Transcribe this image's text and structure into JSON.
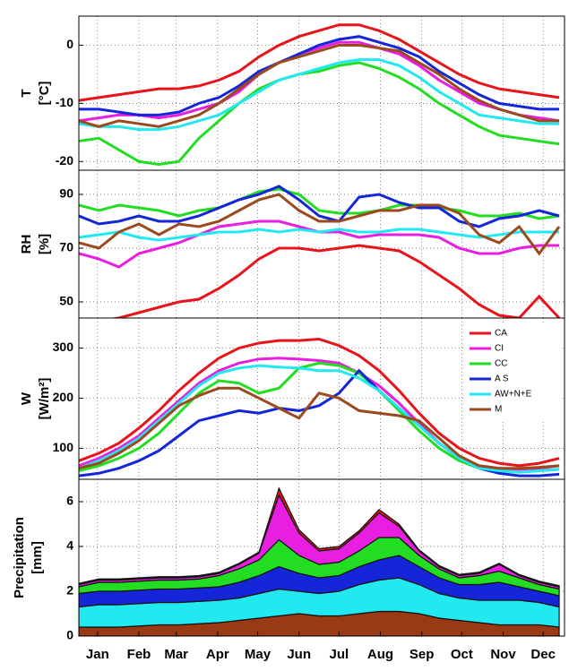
{
  "chart_data": [
    {
      "type": "line",
      "ylabel": "T",
      "yunit": "[°C]",
      "ylim": [
        -21.5,
        5
      ],
      "yticks": [
        -20,
        -10,
        0
      ],
      "xlim": [
        1,
        365
      ],
      "x": [
        1,
        16,
        31,
        46,
        61,
        76,
        91,
        106,
        121,
        136,
        151,
        166,
        181,
        196,
        211,
        226,
        241,
        256,
        271,
        286,
        301,
        316,
        331,
        346,
        361
      ],
      "series": [
        {
          "color": "#e8141c",
          "values": [
            -9.5,
            -9,
            -8.5,
            -8,
            -7.5,
            -7.5,
            -7,
            -6,
            -4.5,
            -2,
            0,
            1.5,
            2.5,
            3.5,
            3.5,
            2.5,
            1,
            -1,
            -3,
            -5,
            -6.5,
            -7.5,
            -8,
            -8.5,
            -9
          ]
        },
        {
          "color": "#e81ee0",
          "values": [
            -13,
            -12.5,
            -12,
            -12,
            -12.5,
            -12,
            -11,
            -10,
            -8,
            -5,
            -3,
            -1.5,
            -0.5,
            0.5,
            0.5,
            -0.5,
            -1.5,
            -3.5,
            -6,
            -8,
            -10,
            -11,
            -12,
            -12.5,
            -13
          ]
        },
        {
          "color": "#22dd22",
          "values": [
            -16.5,
            -16,
            -18,
            -20,
            -20.5,
            -20,
            -16,
            -13,
            -10,
            -7.5,
            -6,
            -5,
            -4.5,
            -3.5,
            -3,
            -4,
            -5.5,
            -7.5,
            -10,
            -12,
            -14,
            -15.5,
            -16,
            -16.5,
            -17
          ]
        },
        {
          "color": "#1426d8",
          "values": [
            -11,
            -11,
            -11.5,
            -12,
            -12,
            -11.5,
            -10,
            -9,
            -7,
            -4.5,
            -3,
            -1.5,
            0,
            1,
            1.5,
            0.5,
            -0.5,
            -2,
            -4.5,
            -6.5,
            -8.5,
            -10,
            -10.5,
            -11,
            -11
          ]
        },
        {
          "color": "#22e8f0",
          "values": [
            -13.5,
            -14,
            -14,
            -14.5,
            -14.5,
            -14,
            -13,
            -12,
            -10,
            -8,
            -6,
            -5,
            -4,
            -3,
            -2.5,
            -2.5,
            -3.5,
            -5.5,
            -8,
            -10,
            -12,
            -12.5,
            -13,
            -13.5,
            -13.5
          ]
        },
        {
          "color": "#9a4a1c",
          "values": [
            -13,
            -14,
            -13,
            -13.5,
            -14,
            -13,
            -12,
            -10,
            -7.5,
            -5,
            -3,
            -2,
            -1,
            0,
            0,
            -0.5,
            -1,
            -3,
            -5,
            -7.5,
            -9.5,
            -11,
            -12,
            -13,
            -13
          ]
        }
      ]
    },
    {
      "type": "line",
      "ylabel": "RH",
      "yunit": "[%]",
      "ylim": [
        44,
        99
      ],
      "yticks": [
        50,
        70,
        90
      ],
      "xlim": [
        1,
        365
      ],
      "x": [
        1,
        16,
        31,
        46,
        61,
        76,
        91,
        106,
        121,
        136,
        151,
        166,
        181,
        196,
        211,
        226,
        241,
        256,
        271,
        286,
        301,
        316,
        331,
        346,
        361
      ],
      "series": [
        {
          "color": "#e8141c",
          "values": [
            42,
            43,
            44,
            46,
            48,
            50,
            51,
            55,
            60,
            66,
            70,
            70,
            69,
            70,
            71,
            70,
            69,
            65,
            60,
            55,
            49,
            45,
            44,
            52,
            44
          ]
        },
        {
          "color": "#e81ee0",
          "values": [
            68,
            66,
            63,
            68,
            70,
            72,
            75,
            78,
            79,
            80,
            80,
            78,
            76,
            76,
            74,
            75,
            75,
            75,
            74,
            70,
            68,
            68,
            70,
            71,
            71
          ]
        },
        {
          "color": "#22dd22",
          "values": [
            86,
            84,
            86,
            85,
            84,
            82,
            84,
            85,
            88,
            91,
            92,
            90,
            84,
            83,
            83,
            84,
            86,
            86,
            85,
            84,
            82,
            82,
            83,
            81,
            82
          ]
        },
        {
          "color": "#1426d8",
          "values": [
            82,
            79,
            80,
            82,
            80,
            80,
            82,
            85,
            88,
            90,
            93,
            88,
            82,
            80,
            89,
            90,
            87,
            85,
            85,
            80,
            78,
            81,
            82,
            84,
            82
          ]
        },
        {
          "color": "#22e8f0",
          "values": [
            74,
            75,
            76,
            74,
            73,
            74,
            75,
            76,
            76,
            77,
            76,
            77,
            76,
            77,
            76,
            76,
            77,
            77,
            76,
            75,
            74,
            75,
            76,
            76,
            76
          ]
        },
        {
          "color": "#9a4a1c",
          "values": [
            72,
            70,
            76,
            79,
            75,
            79,
            78,
            80,
            84,
            88,
            90,
            84,
            80,
            80,
            82,
            84,
            84,
            86,
            86,
            83,
            75,
            72,
            78,
            68,
            78
          ]
        }
      ]
    },
    {
      "type": "line",
      "ylabel": "W",
      "yunit": "[W/m²]",
      "ylim": [
        38,
        360
      ],
      "yticks": [
        100,
        200,
        300
      ],
      "xlim": [
        1,
        365
      ],
      "x": [
        1,
        16,
        31,
        46,
        61,
        76,
        91,
        106,
        121,
        136,
        151,
        166,
        181,
        196,
        211,
        226,
        241,
        256,
        271,
        286,
        301,
        316,
        331,
        346,
        361
      ],
      "series": [
        {
          "name": "CA",
          "color": "#e8141c",
          "values": [
            75,
            90,
            110,
            140,
            175,
            215,
            250,
            280,
            300,
            310,
            315,
            315,
            318,
            305,
            285,
            255,
            215,
            170,
            130,
            100,
            80,
            70,
            65,
            70,
            80
          ]
        },
        {
          "name": "CI",
          "color": "#e81ee0",
          "values": [
            65,
            80,
            100,
            125,
            160,
            195,
            230,
            255,
            270,
            278,
            280,
            278,
            275,
            270,
            250,
            225,
            190,
            150,
            110,
            80,
            65,
            60,
            58,
            60,
            65
          ]
        },
        {
          "name": "CC",
          "color": "#22dd22",
          "values": [
            55,
            65,
            80,
            100,
            130,
            170,
            210,
            235,
            230,
            210,
            220,
            260,
            270,
            265,
            250,
            215,
            175,
            135,
            100,
            75,
            60,
            55,
            52,
            55,
            58
          ]
        },
        {
          "name": "A S",
          "color": "#1426d8",
          "values": [
            45,
            50,
            60,
            75,
            95,
            125,
            155,
            165,
            175,
            170,
            180,
            175,
            185,
            210,
            255,
            215,
            180,
            145,
            110,
            80,
            60,
            50,
            45,
            45,
            48
          ]
        },
        {
          "name": "AW+N+E",
          "color": "#22e8f0",
          "values": [
            60,
            75,
            95,
            120,
            155,
            190,
            225,
            250,
            260,
            265,
            262,
            260,
            255,
            255,
            240,
            215,
            180,
            145,
            110,
            80,
            60,
            55,
            52,
            55,
            58
          ]
        },
        {
          "name": "M",
          "color": "#9a4a1c",
          "values": [
            60,
            70,
            90,
            115,
            150,
            185,
            205,
            220,
            220,
            200,
            180,
            160,
            210,
            200,
            175,
            170,
            165,
            155,
            120,
            85,
            65,
            60,
            60,
            62,
            65
          ]
        }
      ]
    },
    {
      "type": "area",
      "ylabel": "Precipitation",
      "yunit": "[mm]",
      "ylim": [
        0,
        7
      ],
      "yticks": [
        0,
        2,
        4,
        6
      ],
      "xlim": [
        1,
        365
      ],
      "xticks": [
        {
          "value": 15,
          "label": "Jan"
        },
        {
          "value": 46,
          "label": "Feb"
        },
        {
          "value": 74,
          "label": "Mar"
        },
        {
          "value": 105,
          "label": "Apr"
        },
        {
          "value": 135,
          "label": "May"
        },
        {
          "value": 166,
          "label": "Jun"
        },
        {
          "value": 196,
          "label": "Jul"
        },
        {
          "value": 227,
          "label": "Aug"
        },
        {
          "value": 258,
          "label": "Sep"
        },
        {
          "value": 288,
          "label": "Oct"
        },
        {
          "value": 319,
          "label": "Nov"
        },
        {
          "value": 349,
          "label": "Dec"
        }
      ],
      "x": [
        1,
        16,
        31,
        46,
        61,
        76,
        91,
        106,
        121,
        136,
        151,
        166,
        181,
        196,
        211,
        226,
        241,
        256,
        271,
        286,
        301,
        316,
        331,
        346,
        361
      ],
      "series": [
        {
          "color": "#9a3a14",
          "values": [
            0.4,
            0.4,
            0.4,
            0.45,
            0.5,
            0.5,
            0.55,
            0.6,
            0.7,
            0.8,
            0.9,
            1.0,
            0.9,
            0.9,
            1.0,
            1.1,
            1.1,
            1.0,
            0.8,
            0.7,
            0.6,
            0.5,
            0.5,
            0.5,
            0.4
          ]
        },
        {
          "color": "#22e8f0",
          "values": [
            0.9,
            1.0,
            1.0,
            1.0,
            1.0,
            1.0,
            1.0,
            1.0,
            1.0,
            1.1,
            1.2,
            1.0,
            1.0,
            1.1,
            1.3,
            1.4,
            1.5,
            1.3,
            1.1,
            1.0,
            1.0,
            1.1,
            1.1,
            1.0,
            0.9
          ]
        },
        {
          "color": "#1426d8",
          "values": [
            0.6,
            0.6,
            0.6,
            0.6,
            0.6,
            0.6,
            0.6,
            0.6,
            0.7,
            0.8,
            1.0,
            0.8,
            0.7,
            0.7,
            0.8,
            0.9,
            1.0,
            0.8,
            0.7,
            0.6,
            0.7,
            0.8,
            0.6,
            0.5,
            0.5
          ]
        },
        {
          "color": "#22dd22",
          "values": [
            0.3,
            0.4,
            0.4,
            0.4,
            0.4,
            0.4,
            0.4,
            0.5,
            0.6,
            0.7,
            1.2,
            0.8,
            0.6,
            0.6,
            0.7,
            1.0,
            0.8,
            0.5,
            0.4,
            0.3,
            0.4,
            0.5,
            0.4,
            0.3,
            0.3
          ]
        },
        {
          "color": "#e81ee0",
          "values": [
            0.1,
            0.1,
            0.1,
            0.1,
            0.1,
            0.1,
            0.1,
            0.1,
            0.2,
            0.3,
            2.0,
            1.0,
            0.6,
            0.6,
            0.8,
            1.1,
            0.5,
            0.2,
            0.1,
            0.1,
            0.1,
            0.3,
            0.1,
            0.1,
            0.1
          ]
        },
        {
          "color": "#e8141c",
          "values": [
            0.05,
            0.05,
            0.05,
            0.05,
            0.05,
            0.05,
            0.05,
            0.05,
            0.05,
            0.05,
            0.3,
            0.15,
            0.1,
            0.1,
            0.1,
            0.15,
            0.1,
            0.05,
            0.05,
            0.05,
            0.05,
            0.05,
            0.05,
            0.05,
            0.05
          ]
        }
      ]
    }
  ]
}
